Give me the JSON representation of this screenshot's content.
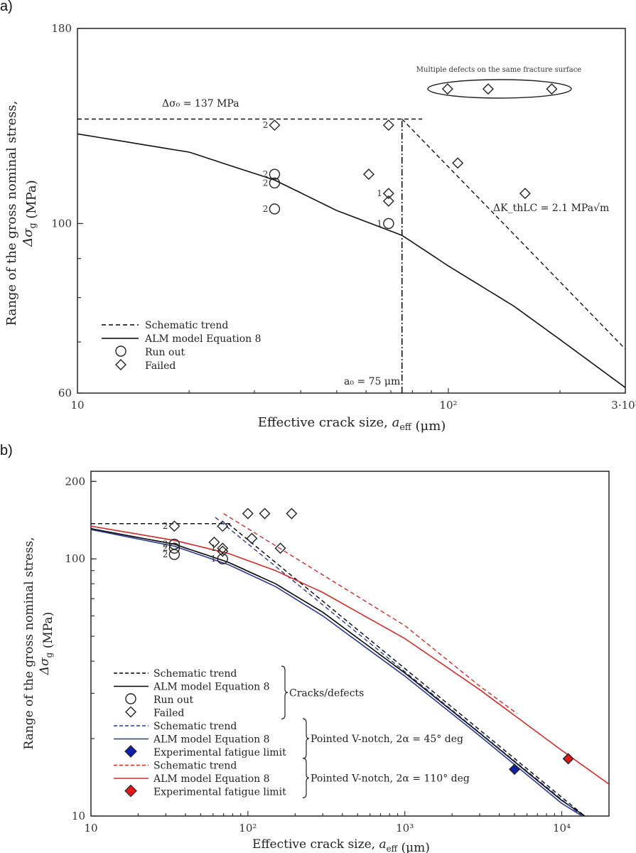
{
  "chart_data": [
    {
      "panel": "a)",
      "type": "scatter",
      "x_scale": "log",
      "y_scale": "log",
      "xlim": [
        10,
        300
      ],
      "ylim": [
        60,
        180
      ],
      "xlabel": "Effective crack size,  a_eff  (μm)",
      "ylabel_line1": "Range of the gross nominal stress,",
      "ylabel_line2": "Δσ_g  (MPa)",
      "x_ticks": [
        {
          "value": 10,
          "label": "10"
        },
        {
          "value": 100,
          "label": "10²"
        },
        {
          "value": 300,
          "label": "3·10²"
        }
      ],
      "y_ticks": [
        {
          "value": 60,
          "label": "60"
        },
        {
          "value": 100,
          "label": "100"
        },
        {
          "value": 180,
          "label": "180"
        }
      ],
      "grid": false,
      "legend_position": "bottom-left",
      "legend": [
        {
          "label": "Schematic trend",
          "kind": "dashed-line",
          "color": "#000000"
        },
        {
          "label": "ALM model Equation 8",
          "kind": "solid-line",
          "color": "#000000"
        },
        {
          "label": "Run out",
          "kind": "circle",
          "color": "#000000"
        },
        {
          "label": "Failed",
          "kind": "diamond",
          "color": "#000000"
        }
      ],
      "annotations": {
        "delta_sigma0": "Δσ₀ = 137 MPa",
        "delta_k": "ΔK_thLC = 2.1 MPa√m",
        "a0": "a₀ = 75 μm",
        "multiple_defects": "Multiple defects on the same fracture surface"
      },
      "delta_sigma0_MPa": 137,
      "a0_um": 75,
      "delta_k_threshold": 2.1,
      "series": [
        {
          "name": "Schematic trend (plateau)",
          "kind": "dashed-line",
          "points": [
            [
              10,
              137
            ],
            [
              85,
              137
            ]
          ]
        },
        {
          "name": "Schematic trend (LEFM)",
          "kind": "dashed-line",
          "points": [
            [
              75,
              137
            ],
            [
              300,
              68.5
            ]
          ]
        },
        {
          "name": "a0 marker",
          "kind": "dashdot-vline",
          "points": [
            [
              75,
              60
            ],
            [
              75,
              137
            ]
          ]
        },
        {
          "name": "ALM model Equation 8",
          "kind": "solid-line",
          "points": [
            [
              10,
              131
            ],
            [
              20,
              124
            ],
            [
              34,
              114
            ],
            [
              50,
              104
            ],
            [
              75,
              96.5
            ],
            [
              100,
              88
            ],
            [
              150,
              78
            ],
            [
              200,
              70.5
            ],
            [
              300,
              61
            ]
          ]
        },
        {
          "name": "Run out",
          "kind": "circle",
          "points": [
            {
              "x": 34,
              "y": 116,
              "label": "2"
            },
            {
              "x": 34,
              "y": 113,
              "label": "2"
            },
            {
              "x": 34,
              "y": 104.5,
              "label": "2"
            },
            {
              "x": 69,
              "y": 100,
              "label": "1"
            }
          ]
        },
        {
          "name": "Failed",
          "kind": "diamond",
          "points": [
            {
              "x": 34,
              "y": 134.5,
              "label": "2"
            },
            {
              "x": 69,
              "y": 134.5,
              "label": ""
            },
            {
              "x": 61,
              "y": 116,
              "label": ""
            },
            {
              "x": 69,
              "y": 109.5,
              "label": "1"
            },
            {
              "x": 69,
              "y": 107,
              "label": ""
            },
            {
              "x": 106,
              "y": 120,
              "label": ""
            },
            {
              "x": 161,
              "y": 109.5,
              "label": ""
            },
            {
              "x": 99.5,
              "y": 150,
              "label": ""
            },
            {
              "x": 128,
              "y": 150,
              "label": ""
            },
            {
              "x": 190,
              "y": 150,
              "label": ""
            }
          ]
        }
      ]
    },
    {
      "panel": "b)",
      "type": "scatter",
      "x_scale": "log",
      "y_scale": "log",
      "xlim": [
        10,
        20000
      ],
      "ylim": [
        10,
        219
      ],
      "xlabel": "Effective crack size,  a_eff  (μm)",
      "ylabel_line1": "Range of the gross nominal stress,",
      "ylabel_line2": "Δσ_g  (MPa)",
      "x_ticks": [
        {
          "value": 10,
          "label": "10"
        },
        {
          "value": 100,
          "label": "10²"
        },
        {
          "value": 1000,
          "label": "10³"
        },
        {
          "value": 10000,
          "label": "10⁴"
        }
      ],
      "y_ticks": [
        {
          "value": 10,
          "label": "10"
        },
        {
          "value": 100,
          "label": "100"
        },
        {
          "value": 200,
          "label": "200"
        }
      ],
      "grid": false,
      "legend_position": "bottom-left",
      "legend_groups": [
        {
          "group": "Cracks/defects",
          "entries": [
            {
              "label": "Schematic trend",
              "kind": "dashed-line",
              "color": "#000000"
            },
            {
              "label": "ALM model Equation 8",
              "kind": "solid-line",
              "color": "#000000"
            },
            {
              "label": "Run out",
              "kind": "circle",
              "color": "#000000"
            },
            {
              "label": "Failed",
              "kind": "diamond",
              "color": "#000000"
            }
          ]
        },
        {
          "group": "Pointed V-notch, 2α = 45° deg",
          "entries": [
            {
              "label": "Schematic trend",
              "kind": "dashed-line",
              "color": "#2b3a8f"
            },
            {
              "label": "ALM model Equation 8",
              "kind": "solid-line",
              "color": "#2b3a8f"
            },
            {
              "label": "Experimental fatigue limit",
              "kind": "filled-diamond",
              "color": "#1020a8"
            }
          ]
        },
        {
          "group": "Pointed V-notch, 2α = 110° deg",
          "entries": [
            {
              "label": "Schematic trend",
              "kind": "dashed-line",
              "color": "#d42a2a"
            },
            {
              "label": "ALM model Equation 8",
              "kind": "solid-line",
              "color": "#d42a2a"
            },
            {
              "label": "Experimental fatigue limit",
              "kind": "filled-diamond",
              "color": "#e01818"
            }
          ]
        }
      ],
      "series": [
        {
          "name": "Cracks/defects schematic plateau",
          "kind": "dashed-line",
          "color": "#000000",
          "points": [
            [
              10,
              137
            ],
            [
              80,
              137
            ]
          ]
        },
        {
          "name": "Cracks/defects schematic trend",
          "kind": "dashed-line",
          "color": "#000000",
          "points": [
            [
              75,
              137
            ],
            [
              14000,
              10
            ]
          ]
        },
        {
          "name": "Cracks/defects ALM model Equation 8",
          "kind": "solid-line",
          "color": "#000000",
          "points": [
            [
              10,
              131
            ],
            [
              34,
              114
            ],
            [
              75,
              97
            ],
            [
              150,
              80
            ],
            [
              300,
              62
            ],
            [
              1000,
              36
            ],
            [
              3000,
              21
            ],
            [
              10000,
              11.5
            ],
            [
              14000,
              10
            ]
          ]
        },
        {
          "name": "V-notch 45° schematic trend",
          "kind": "dashed-line",
          "color": "#2b3a8f",
          "points": [
            [
              62,
              145
            ],
            [
              13500,
              10
            ]
          ]
        },
        {
          "name": "V-notch 45° ALM model Equation 8",
          "kind": "solid-line",
          "color": "#2b3a8f",
          "points": [
            [
              10,
              130
            ],
            [
              34,
              112
            ],
            [
              75,
              95
            ],
            [
              150,
              78
            ],
            [
              300,
              60
            ],
            [
              1000,
              35
            ],
            [
              3000,
              20.5
            ],
            [
              10000,
              11.2
            ],
            [
              13500,
              10
            ]
          ]
        },
        {
          "name": "V-notch 110° schematic trend",
          "kind": "dashed-line",
          "color": "#d42a2a",
          "points": [
            [
              70,
              150
            ],
            [
              1000,
              55
            ],
            [
              3000,
              32
            ],
            [
              5200,
              25
            ]
          ]
        },
        {
          "name": "V-notch 110° ALM model Equation 8",
          "kind": "solid-line",
          "color": "#d42a2a",
          "points": [
            [
              10,
              134
            ],
            [
              34,
              118
            ],
            [
              75,
              105
            ],
            [
              150,
              90
            ],
            [
              300,
              74
            ],
            [
              1000,
              49
            ],
            [
              3000,
              31
            ],
            [
              10000,
              18
            ],
            [
              20000,
              13.3
            ]
          ]
        },
        {
          "name": "Run out",
          "kind": "circle",
          "color": "#000000",
          "points": [
            {
              "x": 34,
              "y": 114,
              "label": "2"
            },
            {
              "x": 34,
              "y": 110,
              "label": "2"
            },
            {
              "x": 34,
              "y": 104,
              "label": "2"
            },
            {
              "x": 69,
              "y": 100,
              "label": "1"
            }
          ]
        },
        {
          "name": "Failed",
          "kind": "diamond",
          "color": "#000000",
          "points": [
            {
              "x": 34,
              "y": 134,
              "label": "2"
            },
            {
              "x": 69,
              "y": 134,
              "label": ""
            },
            {
              "x": 61,
              "y": 116,
              "label": ""
            },
            {
              "x": 69,
              "y": 110,
              "label": "1"
            },
            {
              "x": 69,
              "y": 107,
              "label": ""
            },
            {
              "x": 106,
              "y": 120,
              "label": ""
            },
            {
              "x": 161,
              "y": 110,
              "label": ""
            },
            {
              "x": 100,
              "y": 150,
              "label": ""
            },
            {
              "x": 128,
              "y": 150,
              "label": ""
            },
            {
              "x": 190,
              "y": 150,
              "label": ""
            }
          ]
        },
        {
          "name": "V-notch 45° experimental fatigue limit",
          "kind": "filled-diamond",
          "color": "#1020a8",
          "points": [
            {
              "x": 5000,
              "y": 15.2
            }
          ]
        },
        {
          "name": "V-notch 110° experimental fatigue limit",
          "kind": "filled-diamond",
          "color": "#e01818",
          "points": [
            {
              "x": 11000,
              "y": 16.7
            }
          ]
        }
      ]
    }
  ]
}
